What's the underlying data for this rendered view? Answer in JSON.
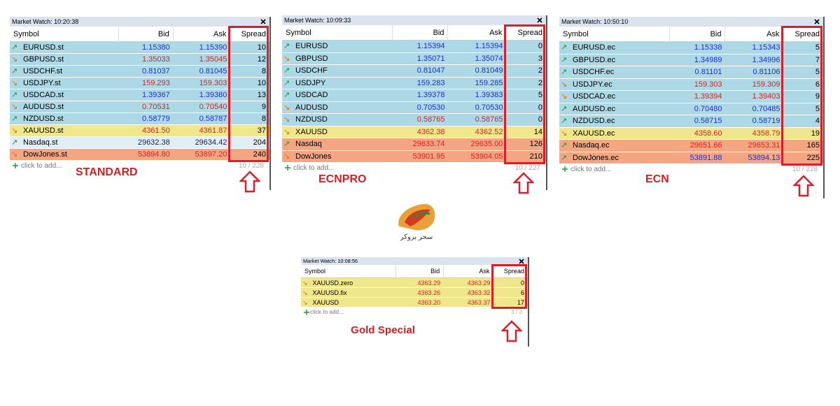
{
  "panels": [
    {
      "title": "Market Watch: 10:20:38",
      "headers": [
        "Symbol",
        "Bid",
        "Ask",
        "Spread"
      ],
      "rows": [
        {
          "arrow": "↗",
          "symbol": "EURUSD.st",
          "bid": "1.15380",
          "ask": "1.15390",
          "spread": 10,
          "color": "#1f2fd0",
          "bg": "#add8e6"
        },
        {
          "arrow": "↘",
          "symbol": "GBPUSD.st",
          "bid": "1.35033",
          "ask": "1.35045",
          "spread": 12,
          "color": "#e02020",
          "bg": "#add8e6"
        },
        {
          "arrow": "↗",
          "symbol": "USDCHF.st",
          "bid": "0.81037",
          "ask": "0.81045",
          "spread": 8,
          "color": "#1f2fd0",
          "bg": "#add8e6"
        },
        {
          "arrow": "↘",
          "symbol": "USDJPY.st",
          "bid": "159.293",
          "ask": "159.303",
          "spread": 10,
          "color": "#e02020",
          "bg": "#add8e6"
        },
        {
          "arrow": "↗",
          "symbol": "USDCAD.st",
          "bid": "1.39367",
          "ask": "1.39380",
          "spread": 13,
          "color": "#1f2fd0",
          "bg": "#add8e6"
        },
        {
          "arrow": "↘",
          "symbol": "AUDUSD.st",
          "bid": "0.70531",
          "ask": "0.70540",
          "spread": 9,
          "color": "#e02020",
          "bg": "#add8e6"
        },
        {
          "arrow": "↗",
          "symbol": "NZDUSD.st",
          "bid": "0.58779",
          "ask": "0.58787",
          "spread": 8,
          "color": "#1f2fd0",
          "bg": "#add8e6"
        },
        {
          "arrow": "↘",
          "symbol": "XAUUSD.st",
          "bid": "4361.50",
          "ask": "4361.87",
          "spread": 37,
          "color": "#e02020",
          "bg": "#f0e68c"
        },
        {
          "arrow": "↗",
          "symbol": "Nasdaq.st",
          "bid": "29632.38",
          "ask": "29634.42",
          "spread": 204,
          "color": "#1a2050",
          "bg": "#e0eef8"
        },
        {
          "arrow": "↘",
          "symbol": "DowJones.st",
          "bid": "53894.80",
          "ask": "53897.20",
          "spread": 240,
          "color": "#e02020",
          "bg": "#f4a582"
        }
      ],
      "add": "click to add...",
      "count": "10 / 228",
      "label": "STANDARD"
    },
    {
      "title": "Market Watch: 10:09:33",
      "headers": [
        "Symbol",
        "Bid",
        "Ask",
        "Spread"
      ],
      "rows": [
        {
          "arrow": "↗",
          "symbol": "EURUSD",
          "bid": "1.15394",
          "ask": "1.15394",
          "spread": 0,
          "color": "#1f2fd0",
          "bg": "#add8e6"
        },
        {
          "arrow": "↘",
          "symbol": "GBPUSD",
          "bid": "1.35071",
          "ask": "1.35074",
          "spread": 3,
          "color": "#1f2fd0",
          "bg": "#add8e6"
        },
        {
          "arrow": "↗",
          "symbol": "USDCHF",
          "bid": "0.81047",
          "ask": "0.81049",
          "spread": 2,
          "color": "#1f2fd0",
          "bg": "#add8e6"
        },
        {
          "arrow": "↗",
          "symbol": "USDJPY",
          "bid": "159.283",
          "ask": "159.285",
          "spread": 2,
          "color": "#1f2fd0",
          "bg": "#add8e6"
        },
        {
          "arrow": "↗",
          "symbol": "USDCAD",
          "bid": "1.39378",
          "ask": "1.39383",
          "spread": 5,
          "color": "#1f2fd0",
          "bg": "#add8e6"
        },
        {
          "arrow": "↘",
          "symbol": "AUDUSD",
          "bid": "0.70530",
          "ask": "0.70530",
          "spread": 0,
          "color": "#1f2fd0",
          "bg": "#add8e6"
        },
        {
          "arrow": "↘",
          "symbol": "NZDUSD",
          "bid": "0.58765",
          "ask": "0.58765",
          "spread": 0,
          "color": "#e02020",
          "bg": "#add8e6"
        },
        {
          "arrow": "↘",
          "symbol": "XAUUSD",
          "bid": "4362.38",
          "ask": "4362.52",
          "spread": 14,
          "color": "#e02020",
          "bg": "#f0e68c"
        },
        {
          "arrow": "↗",
          "symbol": "Nasdaq",
          "bid": "29633.74",
          "ask": "29635.00",
          "spread": 126,
          "color": "#e02020",
          "bg": "#f4a582"
        },
        {
          "arrow": "↘",
          "symbol": "DowJones",
          "bid": "53901.95",
          "ask": "53904.05",
          "spread": 210,
          "color": "#e02020",
          "bg": "#f4a582"
        }
      ],
      "add": "click to add...",
      "count": "10 / 227",
      "label": "ECNPRO"
    },
    {
      "title": "Market Watch: 10:50:10",
      "headers": [
        "Symbol",
        "Bid",
        "Ask",
        "Spread"
      ],
      "rows": [
        {
          "arrow": "↗",
          "symbol": "EURUSD.ec",
          "bid": "1.15338",
          "ask": "1.15343",
          "spread": 5,
          "color": "#1f2fd0",
          "bg": "#add8e6"
        },
        {
          "arrow": "↗",
          "symbol": "GBPUSD.ec",
          "bid": "1.34989",
          "ask": "1.34996",
          "spread": 7,
          "color": "#1f2fd0",
          "bg": "#add8e6"
        },
        {
          "arrow": "↗",
          "symbol": "USDCHF.ec",
          "bid": "0.81101",
          "ask": "0.81106",
          "spread": 5,
          "color": "#1f2fd0",
          "bg": "#add8e6"
        },
        {
          "arrow": "↘",
          "symbol": "USDJPY.ec",
          "bid": "159.303",
          "ask": "159.309",
          "spread": 6,
          "color": "#e02020",
          "bg": "#add8e6"
        },
        {
          "arrow": "↘",
          "symbol": "USDCAD.ec",
          "bid": "1.39394",
          "ask": "1.39403",
          "spread": 9,
          "color": "#e02020",
          "bg": "#add8e6"
        },
        {
          "arrow": "↗",
          "symbol": "AUDUSD.ec",
          "bid": "0.70480",
          "ask": "0.70485",
          "spread": 5,
          "color": "#1f2fd0",
          "bg": "#add8e6"
        },
        {
          "arrow": "↗",
          "symbol": "NZDUSD.ec",
          "bid": "0.58715",
          "ask": "0.58719",
          "spread": 4,
          "color": "#1f2fd0",
          "bg": "#add8e6"
        },
        {
          "arrow": "↘",
          "symbol": "XAUUSD.ec",
          "bid": "4358.60",
          "ask": "4358.79",
          "spread": 19,
          "color": "#e02020",
          "bg": "#f0e68c"
        },
        {
          "arrow": "↗",
          "symbol": "Nasdaq.ec",
          "bid": "29651.66",
          "ask": "29653.31",
          "spread": 165,
          "color": "#e02020",
          "bg": "#f4a582"
        },
        {
          "arrow": "↗",
          "symbol": "DowJones.ec",
          "bid": "53891.88",
          "ask": "53894.13",
          "spread": 225,
          "color": "#1f2fd0",
          "bg": "#f4a582"
        }
      ],
      "add": "click to add...",
      "count": "10 / 228",
      "label": "ECN"
    },
    {
      "title": "Market Watch: 10:08:56",
      "headers": [
        "Symbol",
        "Bid",
        "Ask",
        "Spread"
      ],
      "rows": [
        {
          "arrow": "↘",
          "symbol": "XAUUSD.zero",
          "bid": "4363.29",
          "ask": "4363.29",
          "spread": 0,
          "color": "#e02020",
          "bg": "#f0e68c"
        },
        {
          "arrow": "↘",
          "symbol": "XAUUSD.fix",
          "bid": "4363.26",
          "ask": "4363.32",
          "spread": 6,
          "color": "#e02020",
          "bg": "#f0e68c"
        },
        {
          "arrow": "↘",
          "symbol": "XAUUSD",
          "bid": "4363.20",
          "ask": "4363.37",
          "spread": 17,
          "color": "#e02020",
          "bg": "#f0e68c"
        }
      ],
      "add": "click to add...",
      "count": "3 / 3",
      "label": "Gold Special"
    }
  ],
  "logo": {
    "text": "سحر بروکر"
  }
}
